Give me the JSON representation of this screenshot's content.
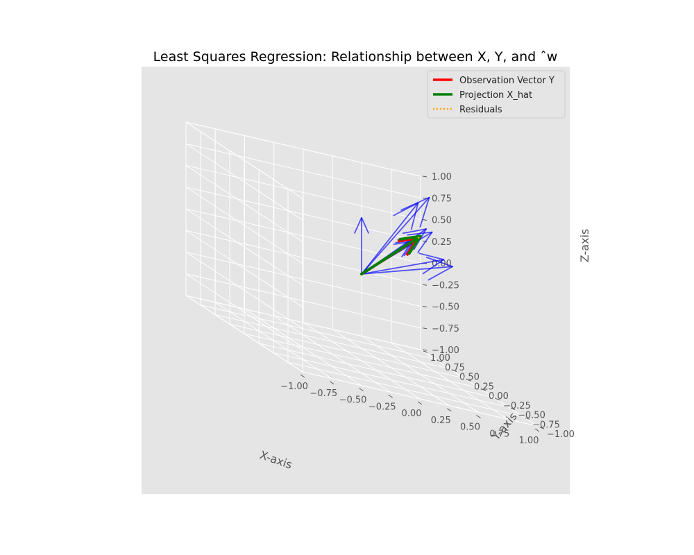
{
  "chart_data": {
    "type": "3d-quiver",
    "title": "Least Squares Regression: Relationship between X, Y, and ˆw",
    "xlabel": "X-axis",
    "ylabel": "Y-axis",
    "zlabel": "Z-axis",
    "xlim": [
      -1,
      1
    ],
    "ylim": [
      -1,
      1
    ],
    "zlim": [
      -1,
      1
    ],
    "x_ticks": [
      "−1.00",
      "−0.75",
      "−0.50",
      "−0.25",
      "0.00",
      "0.25",
      "0.50",
      "0.75",
      "1.00"
    ],
    "y_ticks": [
      "−1.00",
      "−0.75",
      "−0.50",
      "−0.25",
      "0.00",
      "0.25",
      "0.50",
      "0.75",
      "1.00"
    ],
    "z_ticks": [
      "−1.00",
      "−0.75",
      "−0.50",
      "−0.25",
      "0.00",
      "0.25",
      "0.50",
      "0.75",
      "1.00"
    ],
    "grid": true,
    "legend_position": "top-right",
    "series": [
      {
        "name": "Observation Vector Y",
        "color": "#ff0000",
        "style": "solid",
        "vectors": [
          {
            "from": [
              0,
              0,
              0
            ],
            "to": [
              0.68,
              0.4,
              0.45
            ]
          }
        ]
      },
      {
        "name": "Projection X_hat",
        "color": "#008000",
        "style": "solid",
        "vectors": [
          {
            "from": [
              0,
              0,
              0
            ],
            "to": [
              0.75,
              0.5,
              0.45
            ]
          }
        ]
      },
      {
        "name": "Residuals",
        "color": "#ffa500",
        "style": "dotted",
        "vectors": [
          {
            "from": [
              0.68,
              0.4,
              0.45
            ],
            "to": [
              0.75,
              0.5,
              0.45
            ]
          }
        ]
      },
      {
        "name": "",
        "color": "#0000ff",
        "style": "solid",
        "vectors": [
          {
            "from": [
              0,
              0,
              0
            ],
            "to": [
              0.0,
              0.0,
              0.65
            ]
          },
          {
            "from": [
              0,
              0,
              0
            ],
            "to": [
              0.78,
              0.6,
              0.8
            ]
          },
          {
            "from": [
              0,
              0,
              0
            ],
            "to": [
              0.95,
              0.75,
              0.85
            ]
          },
          {
            "from": [
              0,
              0,
              0
            ],
            "to": [
              0.8,
              0.5,
              0.55
            ]
          },
          {
            "from": [
              0,
              0,
              0
            ],
            "to": [
              0.9,
              0.6,
              0.5
            ]
          },
          {
            "from": [
              0,
              0,
              0
            ],
            "to": [
              0.85,
              0.3,
              0.3
            ]
          },
          {
            "from": [
              0,
              0,
              0
            ],
            "to": [
              1.0,
              0.45,
              0.2
            ]
          },
          {
            "from": [
              0,
              0,
              0
            ],
            "to": [
              0.72,
              0.48,
              0.45
            ]
          },
          {
            "from": [
              0,
              0,
              0
            ],
            "to": [
              0.6,
              0.3,
              0.45
            ]
          },
          {
            "from": [
              0,
              0,
              0
            ],
            "to": [
              0.7,
              0.55,
              0.35
            ]
          }
        ]
      }
    ]
  },
  "colors": {
    "axes_background": "#e5e5e5",
    "pane": "#e5e5e5",
    "grid": "#ffffff",
    "blue_arrows": "#0000ff"
  }
}
